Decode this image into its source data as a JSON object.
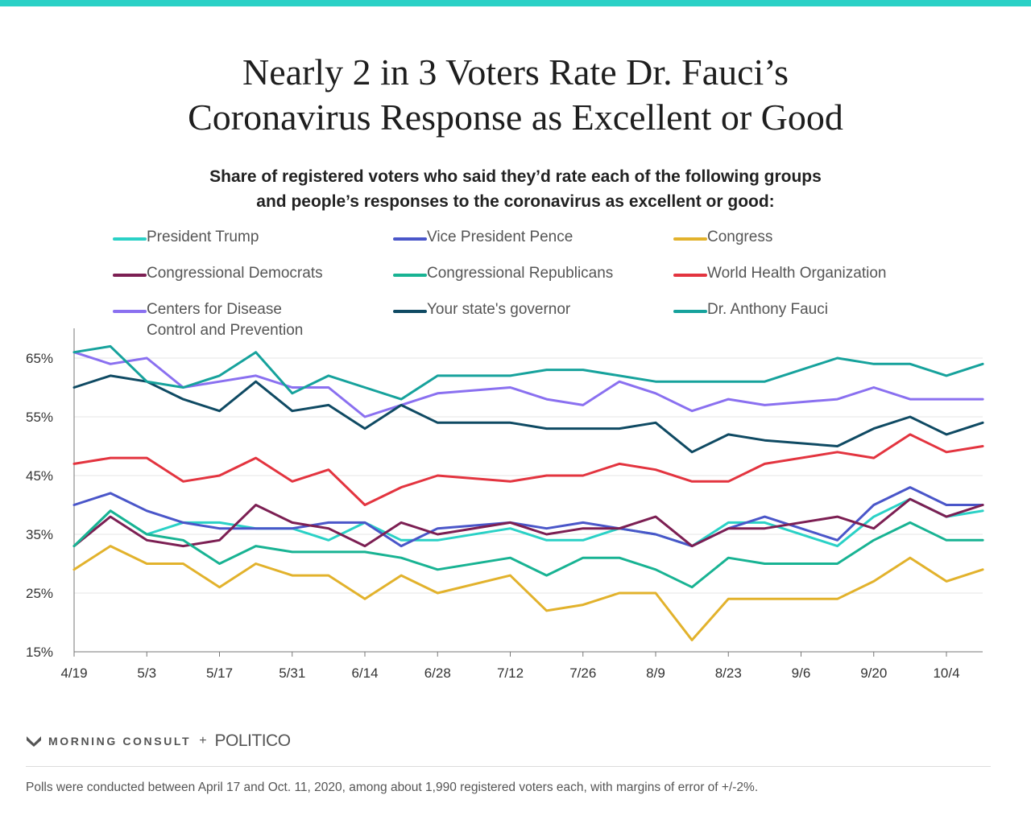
{
  "header": {
    "title_line1": "Nearly 2 in 3 Voters Rate Dr. Fauci’s",
    "title_line2": "Coronavirus Response as Excellent or Good",
    "subtitle_line1": "Share of registered voters who said they’d rate each of the following groups",
    "subtitle_line2": "and people’s responses to the coronavirus as excellent or good:"
  },
  "footer": {
    "brand_morning_consult": "MORNING CONSULT",
    "brand_plus": "+",
    "brand_politico": "POLITICO",
    "note": "Polls were conducted between April 17 and Oct. 11, 2020, among about 1,990 registered voters each, with margins of error of +/-2%."
  },
  "icons": {
    "brand_logo": "morning-consult-m-icon"
  },
  "chart_data": {
    "type": "line",
    "x": [
      "4/19",
      "4/26",
      "5/3",
      "5/10",
      "5/17",
      "5/24",
      "5/31",
      "6/7",
      "6/14",
      "6/21",
      "6/28",
      "7/12",
      "7/19",
      "7/26",
      "8/2",
      "8/9",
      "8/16",
      "8/23",
      "8/30",
      "9/13",
      "9/20",
      "9/27",
      "10/4",
      "10/11"
    ],
    "x_tick_labels": [
      "4/19",
      "5/3",
      "5/17",
      "5/31",
      "6/14",
      "6/28",
      "7/12",
      "7/26",
      "8/9",
      "8/23",
      "9/6",
      "9/20",
      "10/4"
    ],
    "x_tick_values": [
      "4/19",
      "5/3",
      "5/17",
      "5/31",
      "6/14",
      "6/28",
      "7/12",
      "7/26",
      "8/9",
      "8/23",
      "9/6",
      "9/20",
      "10/4"
    ],
    "ylim": [
      15,
      70
    ],
    "y_ticks": [
      15,
      25,
      35,
      45,
      55,
      65
    ],
    "y_tick_labels": [
      "15%",
      "25%",
      "35%",
      "45%",
      "55%",
      "65%"
    ],
    "grid": true,
    "legend_position": "top",
    "series": [
      {
        "name": "President Trump",
        "color": "#2ad1c6",
        "values": [
          33,
          39,
          35,
          37,
          37,
          36,
          36,
          34,
          37,
          34,
          34,
          36,
          34,
          34,
          36,
          35,
          33,
          37,
          37,
          33,
          38,
          41,
          38,
          39
        ]
      },
      {
        "name": "Vice President Pence",
        "color": "#4a56c9",
        "values": [
          40,
          42,
          39,
          37,
          36,
          36,
          36,
          37,
          37,
          33,
          36,
          37,
          36,
          37,
          36,
          35,
          33,
          36,
          38,
          34,
          40,
          43,
          40,
          40
        ]
      },
      {
        "name": "Congress",
        "color": "#e2b22c",
        "values": [
          29,
          33,
          30,
          30,
          26,
          30,
          28,
          28,
          24,
          28,
          25,
          28,
          22,
          23,
          25,
          25,
          17,
          24,
          24,
          24,
          27,
          31,
          27,
          29
        ]
      },
      {
        "name": "Congressional Democrats",
        "color": "#7c1f53",
        "values": [
          33,
          38,
          34,
          33,
          34,
          40,
          37,
          36,
          33,
          37,
          35,
          37,
          35,
          36,
          36,
          38,
          33,
          36,
          36,
          38,
          36,
          41,
          38,
          40
        ]
      },
      {
        "name": "Congressional Republicans",
        "color": "#18b393",
        "values": [
          33,
          39,
          35,
          34,
          30,
          33,
          32,
          32,
          32,
          31,
          29,
          31,
          28,
          31,
          31,
          29,
          26,
          31,
          30,
          30,
          34,
          37,
          34,
          34
        ]
      },
      {
        "name": "World Health Organization",
        "color": "#e3343f",
        "values": [
          47,
          48,
          48,
          44,
          45,
          48,
          44,
          46,
          40,
          43,
          45,
          44,
          45,
          45,
          47,
          46,
          44,
          44,
          47,
          49,
          48,
          52,
          49,
          50
        ]
      },
      {
        "name": "Centers for Disease Control and Prevention",
        "name_line1": "Centers for Disease",
        "name_line2": "Control and Prevention",
        "color": "#8a70f0",
        "values": [
          66,
          64,
          65,
          60,
          61,
          62,
          60,
          60,
          55,
          57,
          59,
          60,
          58,
          57,
          61,
          59,
          56,
          58,
          57,
          58,
          60,
          58,
          58,
          58
        ]
      },
      {
        "name": "Your state's governor",
        "color": "#0f4a63",
        "values": [
          60,
          62,
          61,
          58,
          56,
          61,
          56,
          57,
          53,
          57,
          54,
          54,
          53,
          53,
          53,
          54,
          49,
          52,
          51,
          50,
          53,
          55,
          52,
          54
        ]
      },
      {
        "name": "Dr. Anthony Fauci",
        "color": "#16a29c",
        "values": [
          66,
          67,
          61,
          60,
          62,
          66,
          59,
          62,
          60,
          58,
          62,
          62,
          63,
          63,
          62,
          61,
          61,
          61,
          61,
          65,
          64,
          64,
          62,
          64
        ]
      }
    ]
  }
}
